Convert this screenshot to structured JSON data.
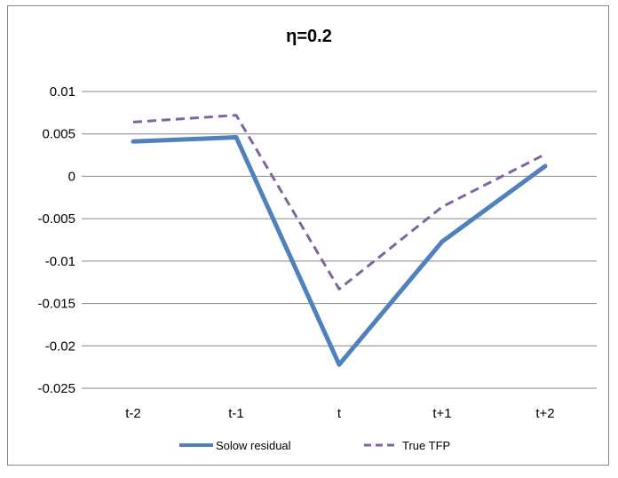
{
  "chart_data": {
    "type": "line",
    "title": "η=0.2",
    "categories": [
      "t-2",
      "t-1",
      "t",
      "t+1",
      "t+2"
    ],
    "series": [
      {
        "name": "Solow residual",
        "values": [
          0.0041,
          0.0046,
          -0.0222,
          -0.0077,
          0.0012
        ],
        "color": "#4F81BD",
        "style": "solid"
      },
      {
        "name": "True TFP",
        "values": [
          0.0064,
          0.0072,
          -0.0133,
          -0.0036,
          0.0026
        ],
        "color": "#8064A2",
        "style": "dashed"
      }
    ],
    "y_ticks": [
      "0.01",
      "0.005",
      "0",
      "-0.005",
      "-0.01",
      "-0.015",
      "-0.02",
      "-0.025"
    ],
    "ylim": [
      -0.025,
      0.01
    ],
    "grid": true,
    "legend_position": "bottom"
  }
}
